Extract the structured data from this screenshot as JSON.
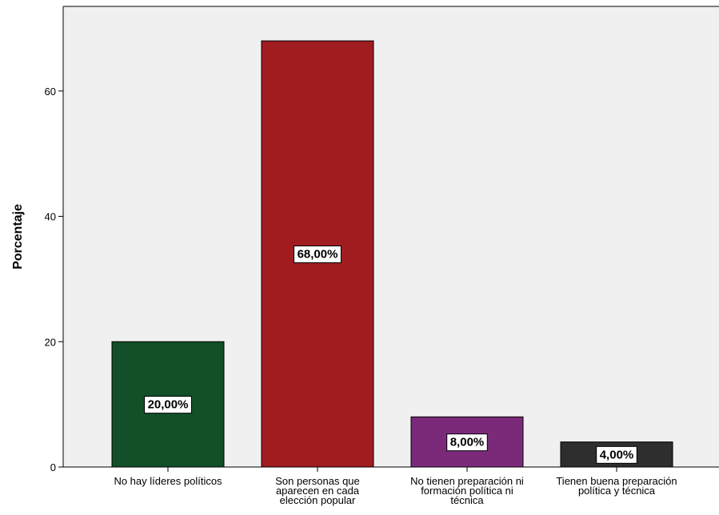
{
  "chart_data": {
    "type": "bar",
    "title": "",
    "xlabel": "",
    "ylabel": "Porcentaje",
    "ylim": [
      0,
      73.5
    ],
    "yticks": [
      0,
      20,
      40,
      60
    ],
    "grid": false,
    "legend": "none",
    "plot_background": "#f0f0f0",
    "categories": [
      [
        "No hay líderes políticos"
      ],
      [
        "Son personas que",
        "aparecen en cada",
        "elección popular"
      ],
      [
        "No tienen preparación ni",
        "formación política ni",
        "técnica"
      ],
      [
        "Tienen buena preparación",
        "política y técnica"
      ]
    ],
    "values": [
      20,
      68,
      8,
      4
    ],
    "data_labels": [
      "20,00%",
      "68,00%",
      "8,00%",
      "4,00%"
    ],
    "colors": [
      "#115028",
      "#a01c20",
      "#7b2a7a",
      "#2e2e2e"
    ]
  }
}
